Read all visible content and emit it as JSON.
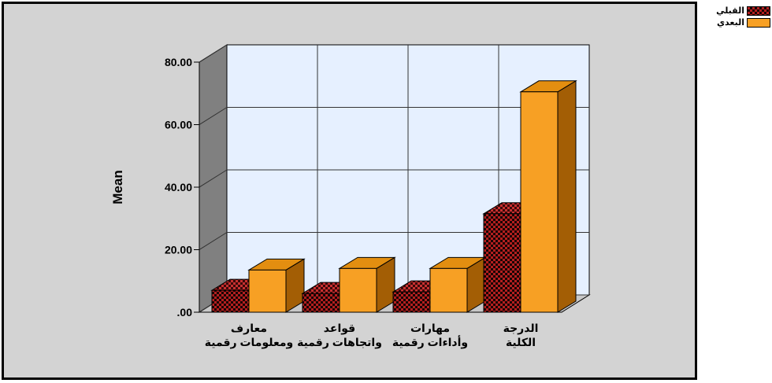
{
  "colors": {
    "pre_main": "#b31f1f",
    "pre_dark": "#1a0505",
    "post_front": "#f7a024",
    "post_top": "#e38e10",
    "post_side": "#a35e05",
    "plot_bg": "#e6f0ff",
    "frame_bg": "#d3d3d3"
  },
  "legend": [
    {
      "label": "القبلي",
      "pattern": "checker",
      "color": "#b31f1f"
    },
    {
      "label": "البعدي",
      "pattern": "solid",
      "color": "#f7a024"
    }
  ],
  "chart_data": {
    "type": "bar",
    "title": "",
    "xlabel": "",
    "ylabel": "Mean",
    "ylim": [
      0,
      80
    ],
    "yticks": [
      ".00",
      "20.00",
      "40.00",
      "60.00",
      "80.00"
    ],
    "grid": true,
    "legend_position": "top-right",
    "categories": [
      [
        "معارف",
        "ومعلومات رقمية"
      ],
      [
        "قواعد",
        "واتجاهات رقمية"
      ],
      [
        "مهارات",
        "وأداءات رقمية"
      ],
      [
        "الدرجة",
        "الكلية"
      ]
    ],
    "series": [
      {
        "name": "القبلي",
        "values": [
          7,
          6,
          6.5,
          31.5
        ]
      },
      {
        "name": "البعدي",
        "values": [
          13.5,
          14,
          14,
          70.5
        ]
      }
    ]
  }
}
